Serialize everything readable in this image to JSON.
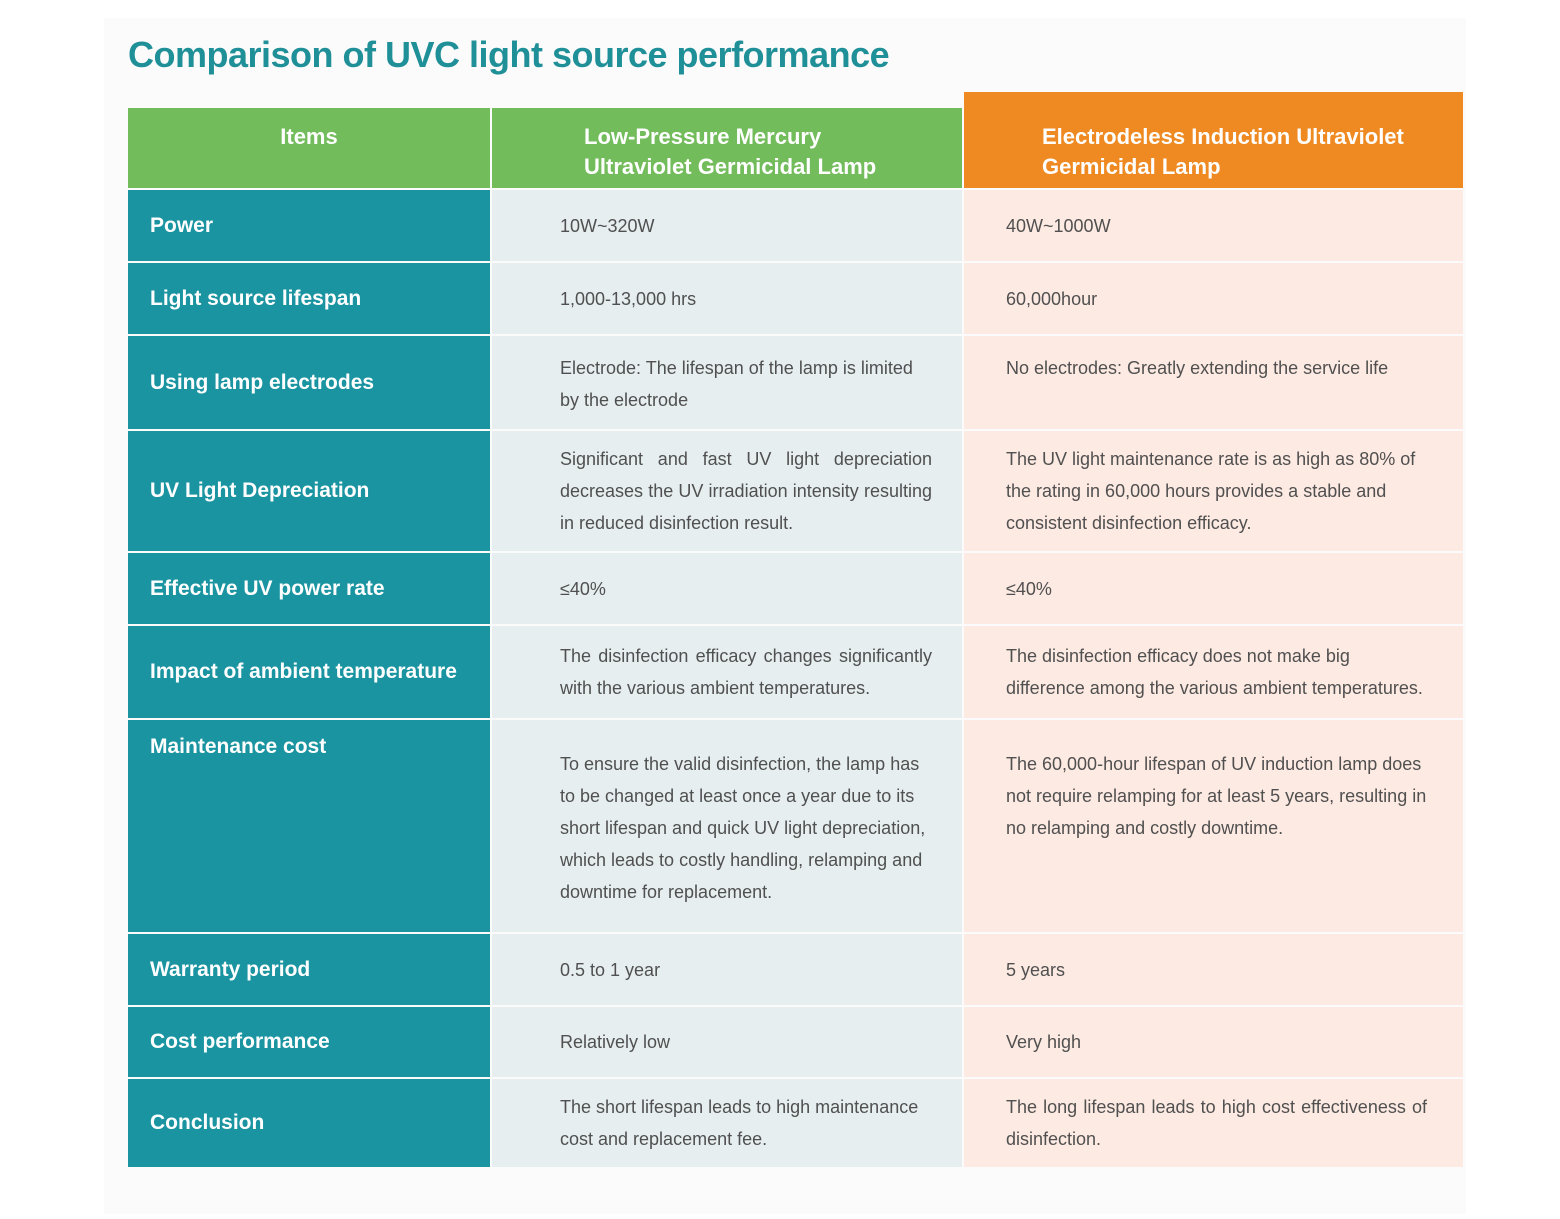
{
  "title": "Comparison of UVC light source performance",
  "header": {
    "items": "Items",
    "low_pressure": [
      "Low-Pressure Mercury",
      "Ultraviolet Germicidal Lamp"
    ],
    "electrodeless": [
      "Electrodeless Induction Ultraviolet",
      "Germicidal Lamp"
    ]
  },
  "colors": {
    "title": "#1f8f98",
    "header_green": "#72bc5b",
    "header_orange": "#ef8a22",
    "item_teal": "#1b94a1",
    "low_pressure_bg": "#e6eef0",
    "electrodeless_bg": "#fdeae2"
  },
  "rows": [
    {
      "item": "Power",
      "low_pressure": "10W~320W",
      "electrodeless": "40W~1000W"
    },
    {
      "item": "Light source lifespan",
      "low_pressure": "1,000-13,000 hrs",
      "electrodeless": "60,000hour"
    },
    {
      "item": "Using lamp electrodes",
      "low_pressure": "Electrode: The lifespan of the lamp is limited by the electrode",
      "electrodeless": "No electrodes: Greatly extending the service life"
    },
    {
      "item": "UV Light Depreciation",
      "low_pressure": "Significant and fast UV light depreciation decreases the UV irradiation intensity resulting in reduced disinfection result.",
      "electrodeless": "The UV light maintenance rate is as high as 80% of the rating in 60,000 hours provides a stable and consistent disinfection efficacy."
    },
    {
      "item": "Effective UV power rate",
      "low_pressure": "≤40%",
      "electrodeless": "≤40%"
    },
    {
      "item": "Impact of ambient temperature",
      "low_pressure": "The disinfection efficacy changes significantly with the various ambient temperatures.",
      "electrodeless": "The disinfection efficacy does not make big difference among the various ambient temperatures."
    },
    {
      "item": "Maintenance cost",
      "low_pressure": "To ensure the valid disinfection, the lamp has to be changed at least once a year due to its short lifespan and quick UV light depreciation, which leads to costly handling, relamping and downtime for replacement.",
      "electrodeless": "The 60,000-hour lifespan of UV induction lamp does not require relamping for at least 5 years, resulting in no relamping and costly downtime."
    },
    {
      "item": "Warranty period",
      "low_pressure": "0.5 to 1 year",
      "electrodeless": "5 years"
    },
    {
      "item": "Cost performance",
      "low_pressure": "Relatively low",
      "electrodeless": "Very high"
    },
    {
      "item": "Conclusion",
      "low_pressure": "The short lifespan leads to high maintenance cost and replacement fee.",
      "electrodeless": "The long lifespan leads to high cost effectiveness of disinfection."
    }
  ]
}
